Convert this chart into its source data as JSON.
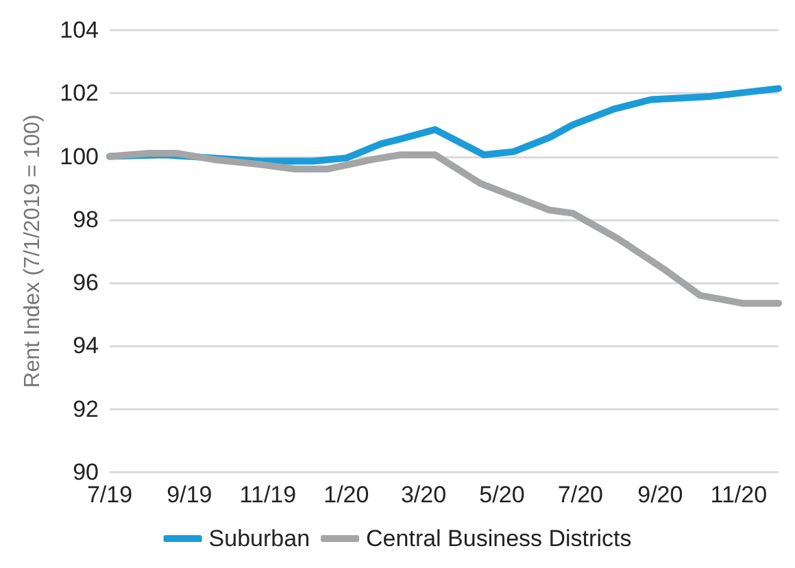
{
  "chart_data": {
    "type": "line",
    "ylabel": "Rent Index (7/1/2019 = 100)",
    "xlim": [
      "2019-07-01",
      "2020-12-02"
    ],
    "ylim": [
      90,
      104
    ],
    "yticks": [
      90,
      92,
      94,
      96,
      98,
      100,
      102,
      104
    ],
    "xticks": [
      {
        "value": "2019-07-01",
        "label": "7/19"
      },
      {
        "value": "2019-09-01",
        "label": "9/19"
      },
      {
        "value": "2019-11-01",
        "label": "11/19"
      },
      {
        "value": "2020-01-01",
        "label": "1/20"
      },
      {
        "value": "2020-03-01",
        "label": "3/20"
      },
      {
        "value": "2020-05-01",
        "label": "5/20"
      },
      {
        "value": "2020-07-01",
        "label": "7/20"
      },
      {
        "value": "2020-09-01",
        "label": "9/20"
      },
      {
        "value": "2020-11-01",
        "label": "11/20"
      }
    ],
    "grid": "y",
    "legend": "bottom",
    "marker": "none",
    "line_style": "solid",
    "series": [
      {
        "name": "Suburban",
        "color": "#1b9cd8",
        "x": [
          "2019-07-01",
          "2019-08-12",
          "2019-09-20",
          "2019-10-25",
          "2019-12-06",
          "2020-01-01",
          "2020-01-28",
          "2020-02-12",
          "2020-03-10",
          "2020-04-17",
          "2020-05-10",
          "2020-06-07",
          "2020-06-25",
          "2020-07-27",
          "2020-08-25",
          "2020-10-10",
          "2020-12-02"
        ],
        "values": [
          100.0,
          100.05,
          99.95,
          99.85,
          99.85,
          99.95,
          100.4,
          100.55,
          100.85,
          100.05,
          100.15,
          100.6,
          101.0,
          101.5,
          101.8,
          101.9,
          102.15
        ]
      },
      {
        "name": "Central Business Districts",
        "color": "#a3a5a6",
        "x": [
          "2019-07-01",
          "2019-08-01",
          "2019-08-22",
          "2019-09-20",
          "2019-10-25",
          "2019-11-22",
          "2019-12-17",
          "2020-01-21",
          "2020-02-12",
          "2020-03-10",
          "2020-04-14",
          "2020-06-07",
          "2020-06-25",
          "2020-07-30",
          "2020-09-05",
          "2020-10-02",
          "2020-11-04",
          "2020-12-02"
        ],
        "values": [
          100.0,
          100.1,
          100.1,
          99.9,
          99.75,
          99.6,
          99.6,
          99.9,
          100.05,
          100.05,
          99.15,
          98.3,
          98.2,
          97.4,
          96.4,
          95.6,
          95.35,
          95.35
        ]
      }
    ]
  }
}
